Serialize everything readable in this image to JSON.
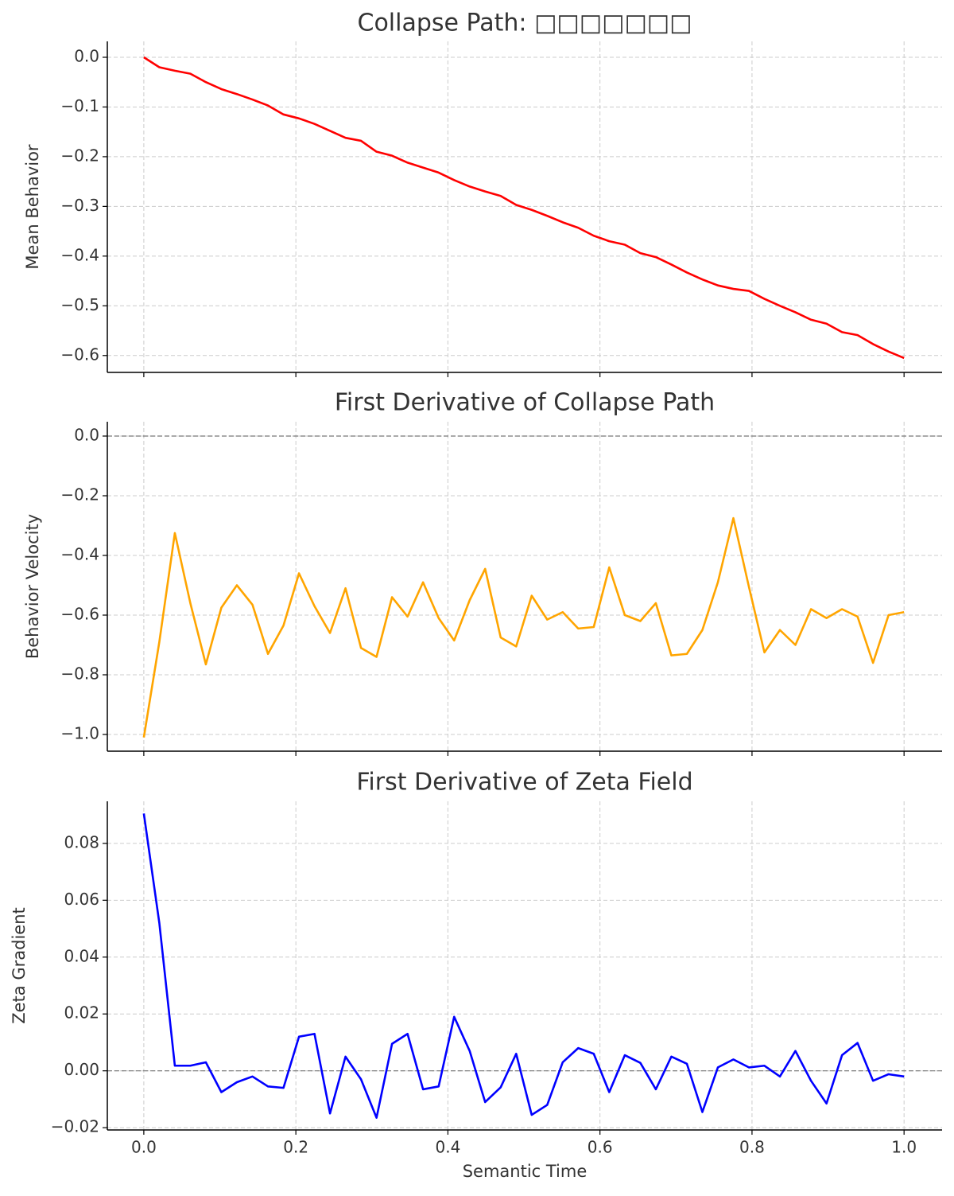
{
  "chart_data": [
    {
      "type": "line",
      "title": "Collapse Path: □□□□□□□",
      "ylabel": "Mean Behavior",
      "color": "#ff0000",
      "grid": true,
      "x": [
        0,
        0.0204,
        0.0408,
        0.0612,
        0.0816,
        0.102,
        0.1224,
        0.1429,
        0.1633,
        0.1837,
        0.2041,
        0.2245,
        0.2449,
        0.2653,
        0.2857,
        0.3061,
        0.3265,
        0.3469,
        0.3673,
        0.3878,
        0.4082,
        0.4286,
        0.449,
        0.4694,
        0.4898,
        0.5102,
        0.5306,
        0.551,
        0.5714,
        0.5918,
        0.6122,
        0.6327,
        0.6531,
        0.6735,
        0.6939,
        0.7143,
        0.7347,
        0.7551,
        0.7755,
        0.7959,
        0.8163,
        0.8367,
        0.8571,
        0.8776,
        0.898,
        0.9184,
        0.9388,
        0.9592,
        0.9796,
        1
      ],
      "values": [
        0,
        -0.02,
        -0.027,
        -0.033,
        -0.05,
        -0.064,
        -0.074,
        -0.085,
        -0.097,
        -0.115,
        -0.123,
        -0.134,
        -0.148,
        -0.162,
        -0.168,
        -0.19,
        -0.198,
        -0.212,
        -0.222,
        -0.232,
        -0.247,
        -0.26,
        -0.27,
        -0.279,
        -0.297,
        -0.307,
        -0.319,
        -0.332,
        -0.343,
        -0.359,
        -0.37,
        -0.377,
        -0.394,
        -0.402,
        -0.417,
        -0.433,
        -0.447,
        -0.459,
        -0.466,
        -0.47,
        -0.486,
        -0.5,
        -0.513,
        -0.528,
        -0.536,
        -0.553,
        -0.559,
        -0.577,
        -0.592,
        -0.605
      ],
      "xlim": [
        -0.048,
        1.05
      ],
      "xticks": [
        0,
        0.2,
        0.4,
        0.6,
        0.8,
        1
      ],
      "ylim": [
        -0.634,
        0.032
      ],
      "yticks": [
        {
          "value": 0,
          "label": "0.0"
        },
        {
          "value": -0.1,
          "label": "−0.1"
        },
        {
          "value": -0.2,
          "label": "−0.2"
        },
        {
          "value": -0.3,
          "label": "−0.3"
        },
        {
          "value": -0.4,
          "label": "−0.4"
        },
        {
          "value": -0.5,
          "label": "−0.5"
        },
        {
          "value": -0.6,
          "label": "−0.6"
        }
      ]
    },
    {
      "type": "line",
      "title": "First Derivative of Collapse Path",
      "ylabel": "Behavior Velocity",
      "color": "#ffa500",
      "grid": true,
      "hlines": [
        0
      ],
      "x": [
        0,
        0.0204,
        0.0408,
        0.0612,
        0.0816,
        0.102,
        0.1224,
        0.1429,
        0.1633,
        0.1837,
        0.2041,
        0.2245,
        0.2449,
        0.2653,
        0.2857,
        0.3061,
        0.3265,
        0.3469,
        0.3673,
        0.3878,
        0.4082,
        0.4286,
        0.449,
        0.4694,
        0.4898,
        0.5102,
        0.5306,
        0.551,
        0.5714,
        0.5918,
        0.6122,
        0.6327,
        0.6531,
        0.6735,
        0.6939,
        0.7143,
        0.7347,
        0.7551,
        0.7755,
        0.7959,
        0.8163,
        0.8367,
        0.8571,
        0.8776,
        0.898,
        0.9184,
        0.9388,
        0.9592,
        0.9796,
        1
      ],
      "values": [
        -1.01,
        -0.69,
        -0.325,
        -0.56,
        -0.765,
        -0.575,
        -0.5,
        -0.565,
        -0.73,
        -0.635,
        -0.46,
        -0.57,
        -0.66,
        -0.51,
        -0.71,
        -0.74,
        -0.54,
        -0.605,
        -0.49,
        -0.61,
        -0.685,
        -0.55,
        -0.445,
        -0.675,
        -0.705,
        -0.535,
        -0.615,
        -0.59,
        -0.645,
        -0.64,
        -0.44,
        -0.6,
        -0.62,
        -0.56,
        -0.735,
        -0.73,
        -0.65,
        -0.49,
        -0.275,
        -0.505,
        -0.725,
        -0.65,
        -0.7,
        -0.58,
        -0.61,
        -0.58,
        -0.605,
        -0.76,
        -0.6,
        -0.59
      ],
      "xlim": [
        -0.048,
        1.05
      ],
      "xticks": [
        0,
        0.2,
        0.4,
        0.6,
        0.8,
        1
      ],
      "ylim": [
        -1.056,
        0.048
      ],
      "yticks": [
        {
          "value": 0,
          "label": "0.0"
        },
        {
          "value": -0.2,
          "label": "−0.2"
        },
        {
          "value": -0.4,
          "label": "−0.4"
        },
        {
          "value": -0.6,
          "label": "−0.6"
        },
        {
          "value": -0.8,
          "label": "−0.8"
        },
        {
          "value": -1,
          "label": "−1.0"
        }
      ]
    },
    {
      "type": "line",
      "title": "First Derivative of Zeta Field",
      "ylabel": "Zeta Gradient",
      "xlabel": "Semantic Time",
      "color": "#0000ff",
      "grid": true,
      "hlines": [
        0
      ],
      "x": [
        0,
        0.0204,
        0.0408,
        0.0612,
        0.0816,
        0.102,
        0.1224,
        0.1429,
        0.1633,
        0.1837,
        0.2041,
        0.2245,
        0.2449,
        0.2653,
        0.2857,
        0.3061,
        0.3265,
        0.3469,
        0.3673,
        0.3878,
        0.4082,
        0.4286,
        0.449,
        0.4694,
        0.4898,
        0.5102,
        0.5306,
        0.551,
        0.5714,
        0.5918,
        0.6122,
        0.6327,
        0.6531,
        0.6735,
        0.6939,
        0.7143,
        0.7347,
        0.7551,
        0.7755,
        0.7959,
        0.8163,
        0.8367,
        0.8571,
        0.8776,
        0.898,
        0.9184,
        0.9388,
        0.9592,
        0.9796,
        1
      ],
      "values": [
        0.0905,
        0.052,
        0.0018,
        0.0018,
        0.003,
        -0.0075,
        -0.004,
        -0.002,
        -0.0055,
        -0.006,
        0.012,
        0.013,
        -0.015,
        0.005,
        -0.003,
        -0.0165,
        0.0095,
        0.013,
        -0.0065,
        -0.0055,
        0.019,
        0.007,
        -0.011,
        -0.0058,
        0.006,
        -0.0155,
        -0.012,
        0.003,
        0.008,
        0.006,
        -0.0075,
        0.0055,
        0.0028,
        -0.0065,
        0.005,
        0.0025,
        -0.0145,
        0.0012,
        0.004,
        0.0012,
        0.0018,
        -0.002,
        0.007,
        -0.0035,
        -0.0115,
        0.0055,
        0.0098,
        -0.0035,
        -0.0012,
        -0.002
      ],
      "xlim": [
        -0.048,
        1.05
      ],
      "xticks": [
        {
          "value": 0,
          "label": "0.0"
        },
        {
          "value": 0.2,
          "label": "0.2"
        },
        {
          "value": 0.4,
          "label": "0.4"
        },
        {
          "value": 0.6,
          "label": "0.6"
        },
        {
          "value": 0.8,
          "label": "0.8"
        },
        {
          "value": 1,
          "label": "1.0"
        }
      ],
      "ylim": [
        -0.0208,
        0.0948
      ],
      "yticks": [
        {
          "value": -0.02,
          "label": "−0.02"
        },
        {
          "value": 0,
          "label": "0.00"
        },
        {
          "value": 0.02,
          "label": "0.02"
        },
        {
          "value": 0.04,
          "label": "0.04"
        },
        {
          "value": 0.06,
          "label": "0.06"
        },
        {
          "value": 0.08,
          "label": "0.08"
        }
      ]
    }
  ]
}
